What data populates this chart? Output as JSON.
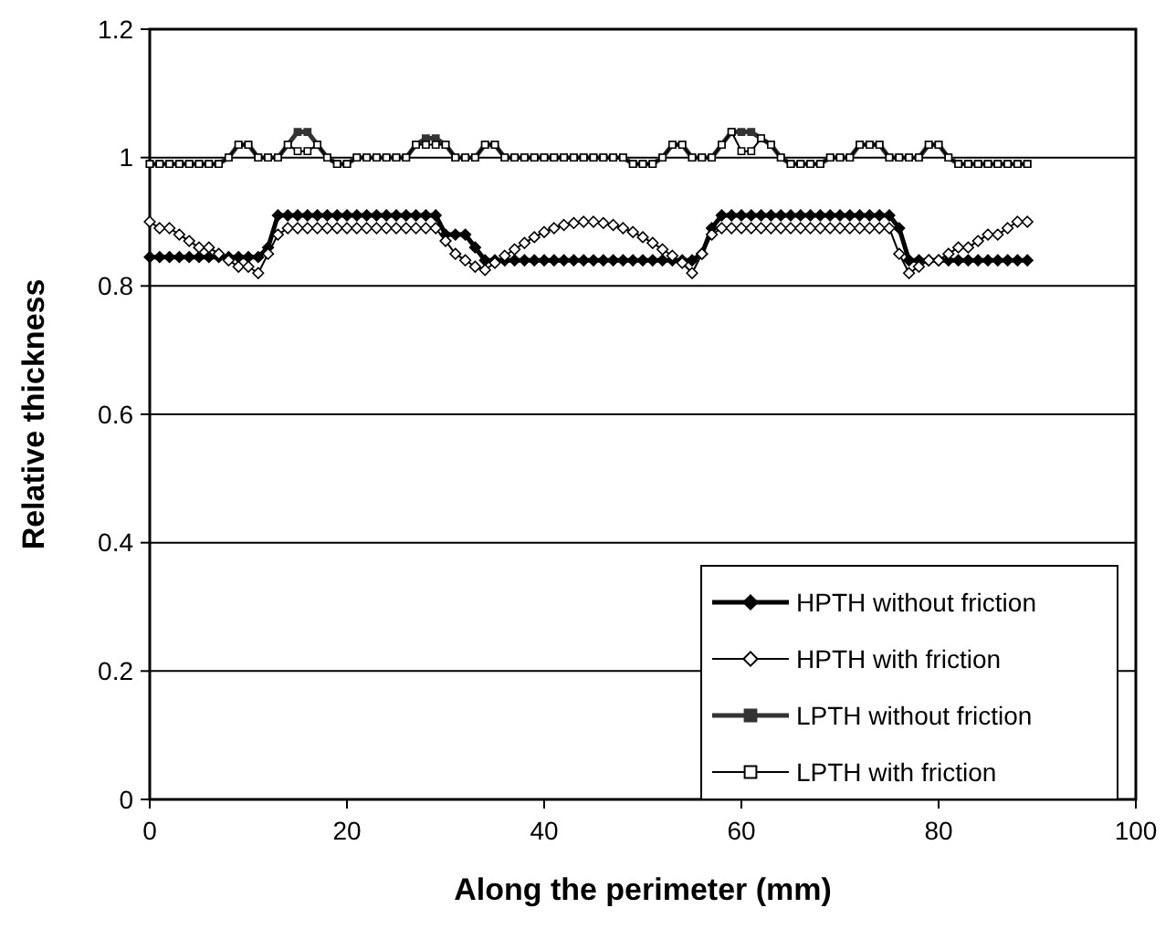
{
  "chart_data": {
    "type": "line",
    "xlabel": "Along the perimeter (mm)",
    "ylabel": "Relative thickness",
    "xlim": [
      0,
      100
    ],
    "xticks": [
      0,
      20,
      40,
      60,
      80,
      100
    ],
    "ylim": [
      0,
      1.2
    ],
    "yticks": [
      0,
      0.2,
      0.4,
      0.6,
      0.8,
      1,
      1.2
    ],
    "grid": "y",
    "legend": "bottom right",
    "line_style": "solid",
    "x": [
      0,
      1,
      2,
      3,
      4,
      5,
      6,
      7,
      8,
      9,
      10,
      11,
      12,
      13,
      14,
      15,
      16,
      17,
      18,
      19,
      20,
      21,
      22,
      23,
      24,
      25,
      26,
      27,
      28,
      29,
      30,
      31,
      32,
      33,
      34,
      35,
      36,
      37,
      38,
      39,
      40,
      41,
      42,
      43,
      44,
      45,
      46,
      47,
      48,
      49,
      50,
      51,
      52,
      53,
      54,
      55,
      56,
      57,
      58,
      59,
      60,
      61,
      62,
      63,
      64,
      65,
      66,
      67,
      68,
      69,
      70,
      71,
      72,
      73,
      74,
      75,
      76,
      77,
      78,
      79,
      80,
      81,
      82,
      83,
      84,
      85,
      86,
      87,
      88,
      89
    ],
    "series": [
      {
        "name": "HPTH without friction",
        "color": "#000000",
        "marker": "diamond",
        "values": [
          0.845,
          0.845,
          0.845,
          0.845,
          0.845,
          0.845,
          0.845,
          0.845,
          0.845,
          0.845,
          0.845,
          0.845,
          0.86,
          0.91,
          0.91,
          0.91,
          0.91,
          0.91,
          0.91,
          0.91,
          0.91,
          0.91,
          0.91,
          0.91,
          0.91,
          0.91,
          0.91,
          0.91,
          0.91,
          0.91,
          0.88,
          0.88,
          0.88,
          0.86,
          0.84,
          0.84,
          0.84,
          0.84,
          0.84,
          0.84,
          0.84,
          0.84,
          0.84,
          0.84,
          0.84,
          0.84,
          0.84,
          0.84,
          0.84,
          0.84,
          0.84,
          0.84,
          0.84,
          0.84,
          0.84,
          0.84,
          0.85,
          0.89,
          0.91,
          0.91,
          0.91,
          0.91,
          0.91,
          0.91,
          0.91,
          0.91,
          0.91,
          0.91,
          0.91,
          0.91,
          0.91,
          0.91,
          0.91,
          0.91,
          0.91,
          0.91,
          0.89,
          0.84,
          0.84,
          0.84,
          0.84,
          0.84,
          0.84,
          0.84,
          0.84,
          0.84,
          0.84,
          0.84,
          0.84,
          0.84
        ]
      },
      {
        "name": "HPTH with friction",
        "color": "#000000",
        "marker": "diamond",
        "colors": [
          "#ffffff",
          "#ffffff",
          "#ffffff",
          "#ffffff",
          "#ffffff",
          "#ffffff",
          "#ffffff",
          "#ffffff",
          "#ffffff",
          "#ffffff",
          "#ffffff",
          "#ffffff",
          "#ffffff",
          "#ffffff",
          "#ffffff",
          "#ffffff",
          "#ffffff",
          "#ffffff",
          "#ffffff",
          "#ffffff",
          "#ffffff",
          "#ffffff",
          "#ffffff",
          "#ffffff",
          "#ffffff",
          "#ffffff",
          "#ffffff",
          "#ffffff",
          "#ffffff",
          "#ffffff",
          "#ffffff",
          "#ffffff",
          "#ffffff",
          "#ffffff",
          "#ffffff",
          "#ffffff",
          "#ffffff",
          "#ffffff",
          "#ffffff",
          "#ffffff",
          "#ffffff",
          "#ffffff",
          "#ffffff",
          "#ffffff",
          "#ffffff",
          "#ffffff",
          "#ffffff",
          "#ffffff",
          "#ffffff",
          "#ffffff",
          "#ffffff",
          "#ffffff",
          "#ffffff",
          "#ffffff",
          "#ffffff",
          "#ffffff",
          "#ffffff",
          "#ffffff",
          "#ffffff",
          "#ffffff",
          "#ffffff",
          "#ffffff",
          "#ffffff",
          "#ffffff",
          "#ffffff",
          "#ffffff",
          "#ffffff",
          "#ffffff",
          "#ffffff",
          "#ffffff",
          "#ffffff",
          "#ffffff",
          "#ffffff",
          "#ffffff",
          "#ffffff",
          "#ffffff",
          "#ffffff",
          "#ffffff",
          "#ffffff",
          "#ffffff",
          "#ffffff",
          "#ffffff",
          "#ffffff",
          "#ffffff",
          "#ffffff",
          "#ffffff",
          "#ffffff",
          "#ffffff",
          "#ffffff",
          "#ffffff"
        ],
        "values": [
          0.9,
          0.89,
          0.89,
          0.88,
          0.87,
          0.86,
          0.86,
          0.85,
          0.84,
          0.83,
          0.83,
          0.82,
          0.85,
          0.88,
          0.89,
          0.89,
          0.89,
          0.89,
          0.89,
          0.89,
          0.89,
          0.89,
          0.89,
          0.89,
          0.89,
          0.89,
          0.89,
          0.89,
          0.89,
          0.89,
          0.87,
          0.85,
          0.84,
          0.83,
          0.825,
          0.836,
          0.847,
          0.857,
          0.867,
          0.876,
          0.884,
          0.89,
          0.895,
          0.898,
          0.9,
          0.9,
          0.898,
          0.895,
          0.89,
          0.884,
          0.876,
          0.867,
          0.857,
          0.847,
          0.836,
          0.82,
          0.85,
          0.88,
          0.89,
          0.89,
          0.89,
          0.89,
          0.89,
          0.89,
          0.89,
          0.89,
          0.89,
          0.89,
          0.89,
          0.89,
          0.89,
          0.89,
          0.89,
          0.89,
          0.89,
          0.89,
          0.85,
          0.82,
          0.83,
          0.84,
          0.84,
          0.85,
          0.86,
          0.86,
          0.87,
          0.88,
          0.88,
          0.89,
          0.9,
          0.9
        ]
      },
      {
        "name": "LPTH without friction",
        "color": "#333333",
        "marker": "square",
        "values": [
          0.99,
          0.99,
          0.99,
          0.99,
          0.99,
          0.99,
          0.99,
          0.99,
          1.0,
          1.02,
          1.02,
          1.0,
          1.0,
          1.0,
          1.02,
          1.04,
          1.04,
          1.02,
          1.0,
          0.99,
          0.99,
          1.0,
          1.0,
          1.0,
          1.0,
          1.0,
          1.0,
          1.02,
          1.03,
          1.03,
          1.02,
          1.0,
          1.0,
          1.0,
          1.02,
          1.02,
          1.0,
          1.0,
          1.0,
          1.0,
          1.0,
          1.0,
          1.0,
          1.0,
          1.0,
          1.0,
          1.0,
          1.0,
          1.0,
          0.99,
          0.99,
          0.99,
          1.0,
          1.02,
          1.02,
          1.0,
          1.0,
          1.0,
          1.02,
          1.04,
          1.04,
          1.04,
          1.03,
          1.02,
          1.0,
          0.99,
          0.99,
          0.99,
          0.99,
          1.0,
          1.0,
          1.0,
          1.02,
          1.02,
          1.02,
          1.0,
          1.0,
          1.0,
          1.0,
          1.02,
          1.02,
          1.0,
          0.99,
          0.99,
          0.99,
          0.99,
          0.99,
          0.99,
          0.99,
          0.99
        ]
      },
      {
        "name": "LPTH with friction",
        "color": "#000000",
        "marker": "square",
        "colors": [
          "#ffffff",
          "#ffffff",
          "#ffffff",
          "#ffffff",
          "#ffffff",
          "#ffffff",
          "#ffffff",
          "#ffffff",
          "#ffffff",
          "#ffffff",
          "#ffffff",
          "#ffffff",
          "#ffffff",
          "#ffffff",
          "#ffffff",
          "#ffffff",
          "#ffffff",
          "#ffffff",
          "#ffffff",
          "#ffffff",
          "#ffffff",
          "#ffffff",
          "#ffffff",
          "#ffffff",
          "#ffffff",
          "#ffffff",
          "#ffffff",
          "#ffffff",
          "#ffffff",
          "#ffffff",
          "#ffffff",
          "#ffffff",
          "#ffffff",
          "#ffffff",
          "#ffffff",
          "#ffffff",
          "#ffffff",
          "#ffffff",
          "#ffffff",
          "#ffffff",
          "#ffffff",
          "#ffffff",
          "#ffffff",
          "#ffffff",
          "#ffffff",
          "#ffffff",
          "#ffffff",
          "#ffffff",
          "#ffffff",
          "#ffffff",
          "#ffffff",
          "#ffffff",
          "#ffffff",
          "#ffffff",
          "#ffffff",
          "#ffffff",
          "#ffffff",
          "#ffffff",
          "#ffffff",
          "#ffffff",
          "#ffffff",
          "#ffffff",
          "#ffffff",
          "#ffffff",
          "#ffffff",
          "#ffffff",
          "#ffffff",
          "#ffffff",
          "#ffffff",
          "#ffffff",
          "#ffffff",
          "#ffffff",
          "#ffffff",
          "#ffffff",
          "#ffffff",
          "#ffffff",
          "#ffffff",
          "#ffffff",
          "#ffffff",
          "#ffffff",
          "#ffffff",
          "#ffffff",
          "#ffffff",
          "#ffffff",
          "#ffffff",
          "#ffffff",
          "#ffffff",
          "#ffffff",
          "#ffffff",
          "#ffffff"
        ],
        "values": [
          0.99,
          0.99,
          0.99,
          0.99,
          0.99,
          0.99,
          0.99,
          0.99,
          1.0,
          1.02,
          1.02,
          1.0,
          1.0,
          1.0,
          1.02,
          1.01,
          1.01,
          1.02,
          1.0,
          0.99,
          0.99,
          1.0,
          1.0,
          1.0,
          1.0,
          1.0,
          1.0,
          1.02,
          1.02,
          1.02,
          1.02,
          1.0,
          1.0,
          1.0,
          1.02,
          1.02,
          1.0,
          1.0,
          1.0,
          1.0,
          1.0,
          1.0,
          1.0,
          1.0,
          1.0,
          1.0,
          1.0,
          1.0,
          1.0,
          0.99,
          0.99,
          0.99,
          1.0,
          1.02,
          1.02,
          1.0,
          1.0,
          1.0,
          1.02,
          1.04,
          1.01,
          1.01,
          1.03,
          1.02,
          1.0,
          0.99,
          0.99,
          0.99,
          0.99,
          1.0,
          1.0,
          1.0,
          1.02,
          1.02,
          1.02,
          1.0,
          1.0,
          1.0,
          1.0,
          1.02,
          1.02,
          1.0,
          0.99,
          0.99,
          0.99,
          0.99,
          0.99,
          0.99,
          0.99,
          0.99
        ]
      }
    ]
  }
}
